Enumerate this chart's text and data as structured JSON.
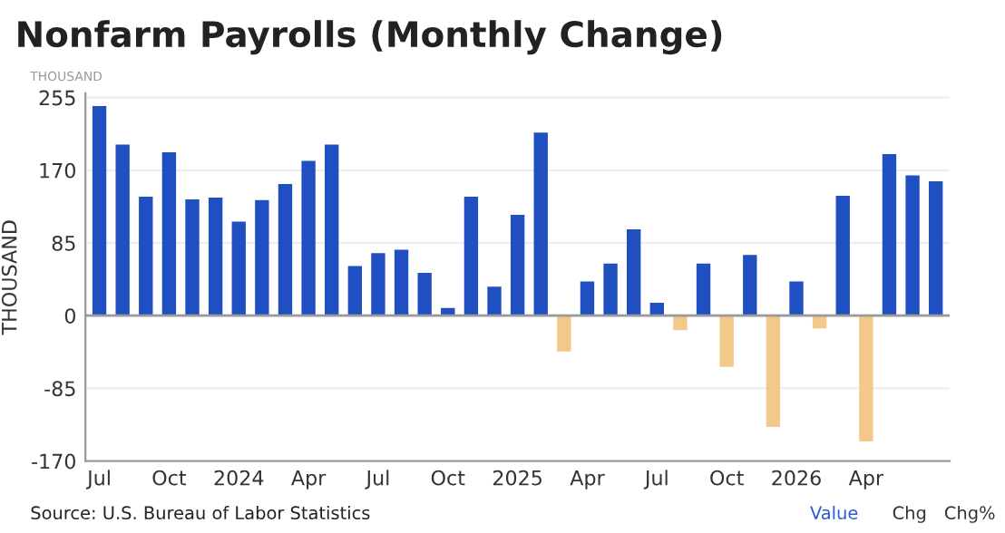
{
  "chart_data": {
    "type": "bar",
    "title": "Nonfarm Payrolls (Monthly Change)",
    "ylabel": "THOUSAND",
    "categories": [
      "Jul",
      null,
      null,
      "Oct",
      null,
      null,
      "2024",
      null,
      null,
      "Apr",
      null,
      null,
      "Jul",
      null,
      null,
      "Oct",
      null,
      null,
      "2025",
      null,
      null,
      "Apr",
      null,
      null,
      "Jul",
      null,
      null,
      "Oct",
      null,
      null,
      "2026",
      null,
      null,
      "Apr",
      null,
      null,
      null
    ],
    "values": [
      245,
      200,
      139,
      191,
      136,
      138,
      110,
      135,
      154,
      181,
      200,
      58,
      73,
      77,
      50,
      9,
      139,
      34,
      118,
      214,
      -42,
      40,
      61,
      101,
      15,
      -17,
      61,
      -60,
      71,
      -130,
      40,
      -15,
      140,
      -147,
      189,
      164,
      157
    ],
    "colors": [
      "#1f4fc0",
      "#1f4fc0",
      "#1f4fc0",
      "#1f4fc0",
      "#1f4fc0",
      "#1f4fc0",
      "#1f4fc0",
      "#1f4fc0",
      "#1f4fc0",
      "#1f4fc0",
      "#1f4fc0",
      "#1f4fc0",
      "#1f4fc0",
      "#1f4fc0",
      "#1f4fc0",
      "#1f4fc0",
      "#1f4fc0",
      "#1f4fc0",
      "#1f4fc0",
      "#1f4fc0",
      "#f3c98b",
      "#1f4fc0",
      "#1f4fc0",
      "#1f4fc0",
      "#1f4fc0",
      "#f3c98b",
      "#1f4fc0",
      "#f3c98b",
      "#1f4fc0",
      "#f3c98b",
      "#1f4fc0",
      "#f3c98b",
      "#1f4fc0",
      "#f3c98b",
      "#1f4fc0",
      "#1f4fc0",
      "#1f4fc0"
    ],
    "ylim": [
      -170,
      260
    ],
    "yticks": [
      -170,
      -85,
      0,
      85,
      170,
      255
    ],
    "grid": "y",
    "annotations": [
      "THOUSAND",
      "Source: U.S. Bureau of Labor Statistics",
      "Value",
      "Chg",
      "Chg%"
    ]
  }
}
